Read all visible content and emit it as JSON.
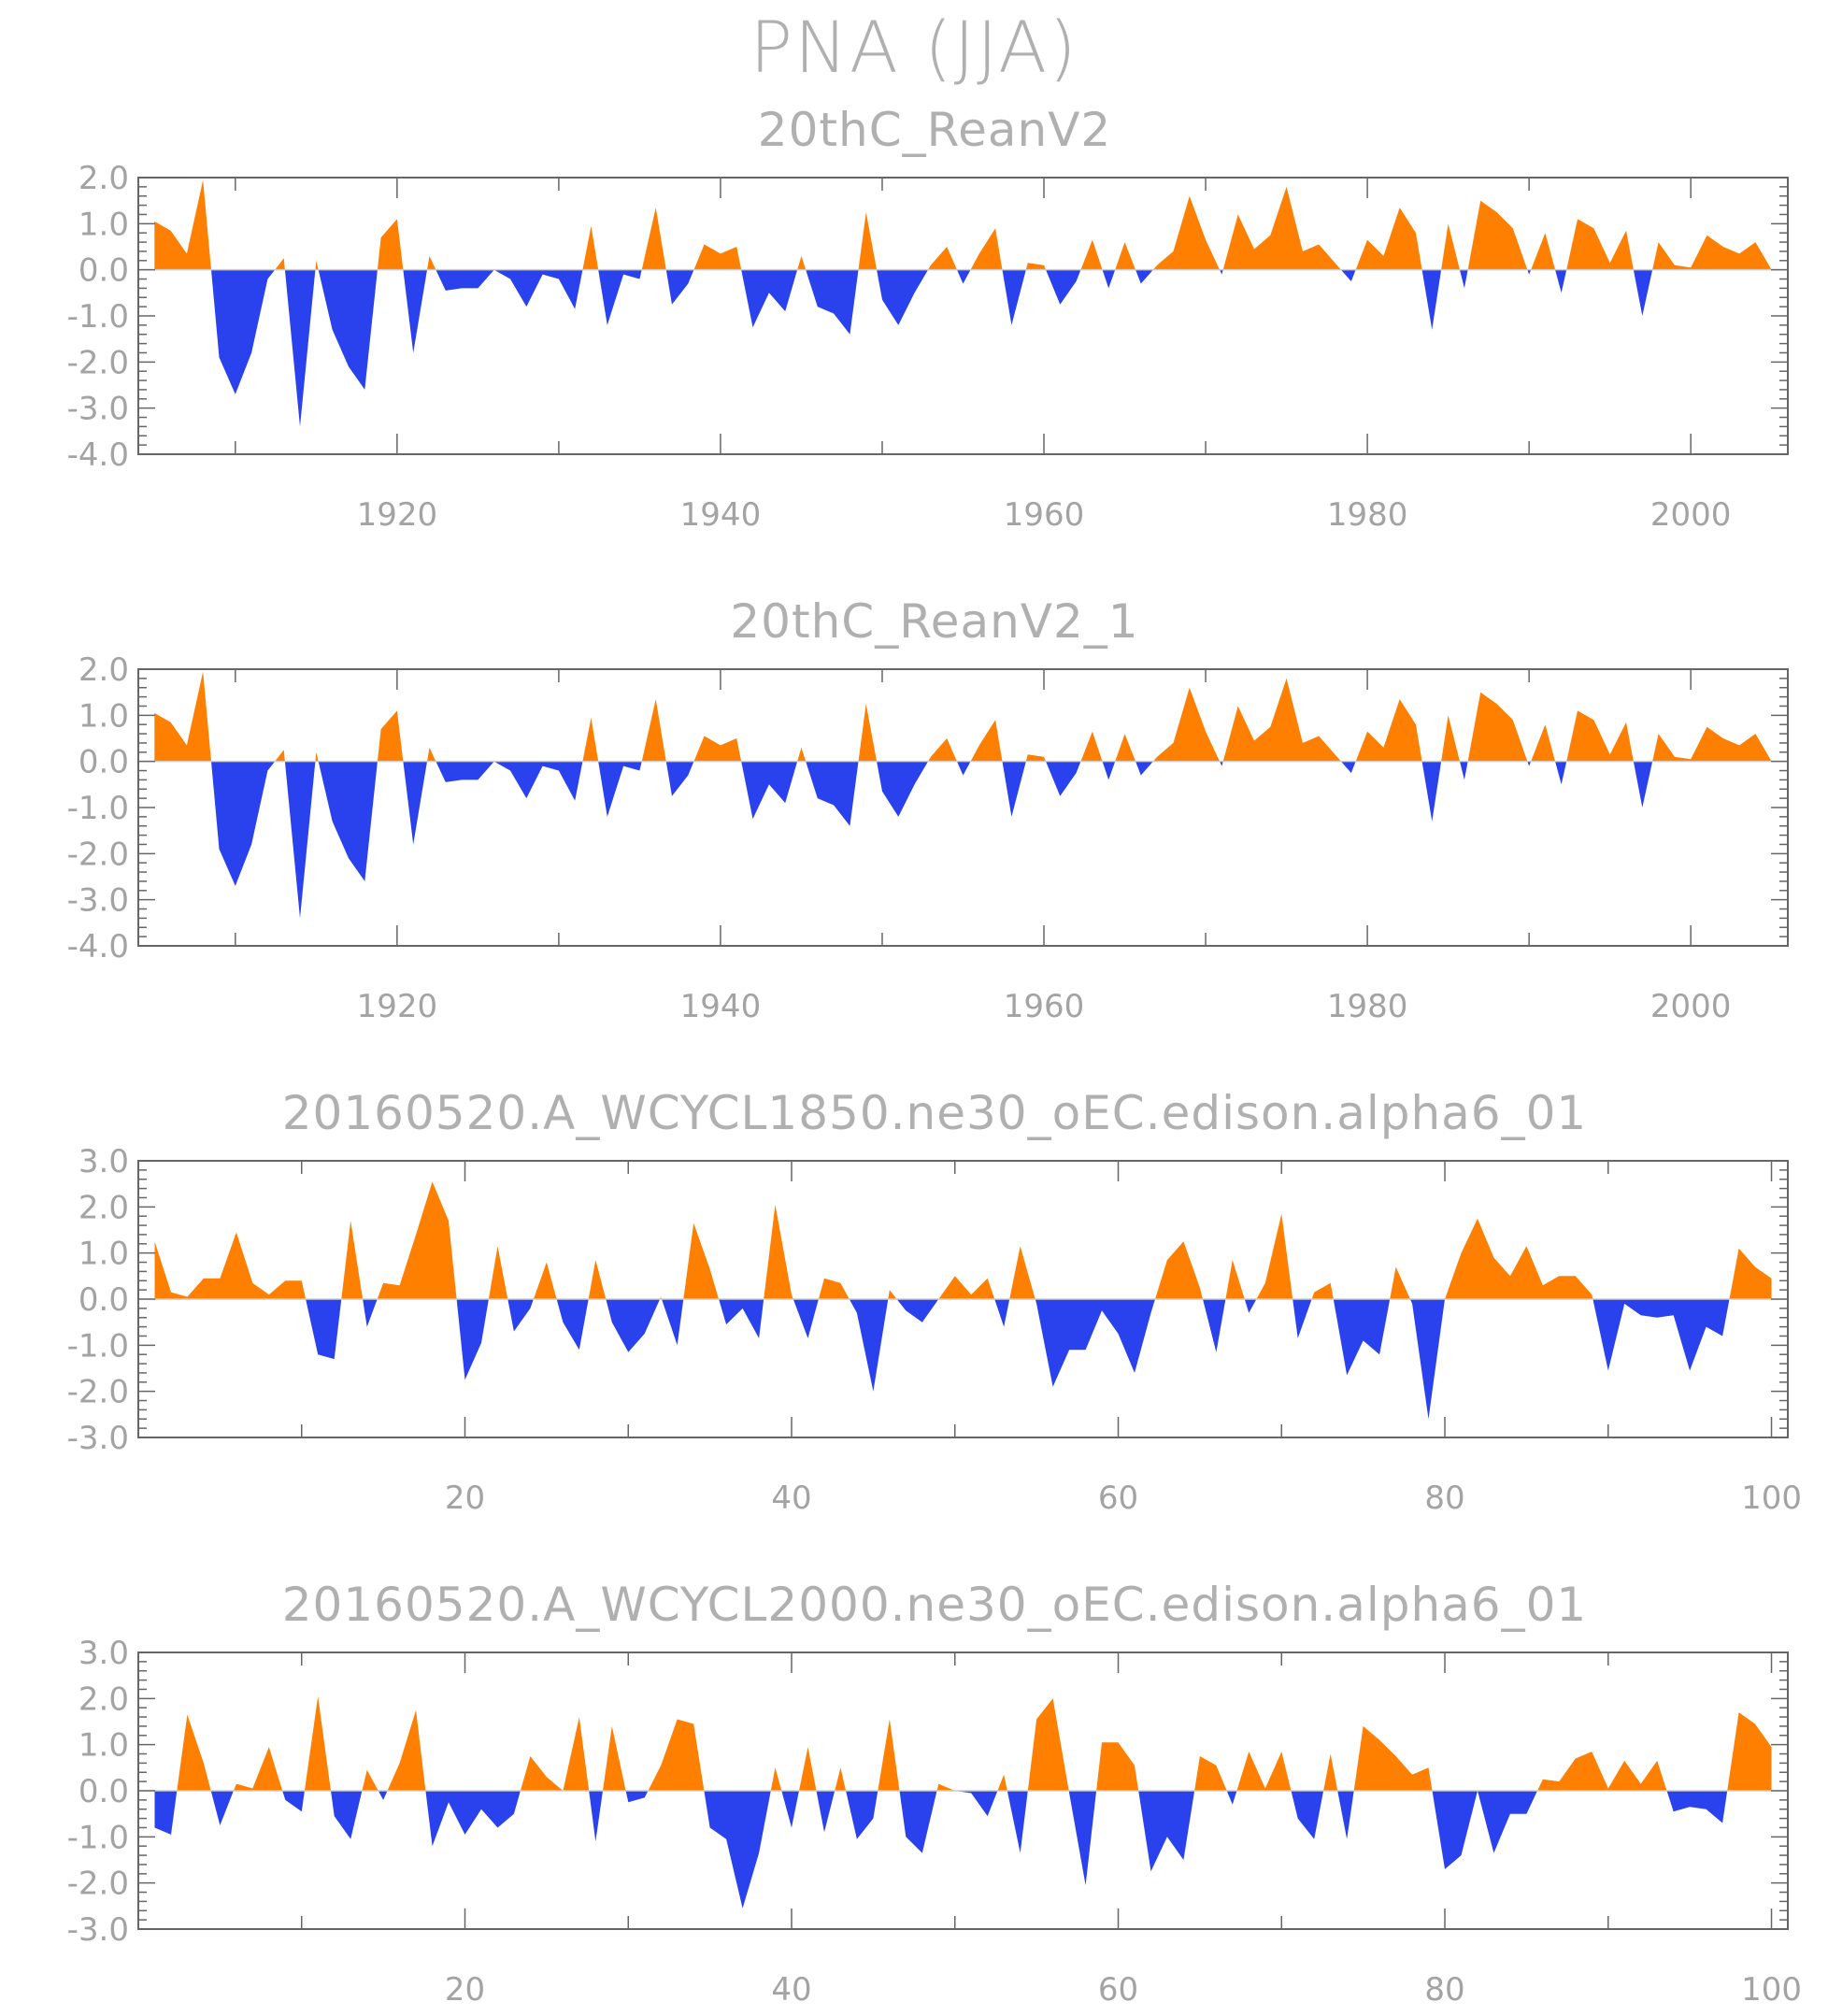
{
  "title": "PNA (JJA)",
  "colors": {
    "positive": "#ff8000",
    "negative": "#2a41ee",
    "axis": "#666666",
    "text": "#a3a3a3"
  },
  "chart_data": [
    {
      "type": "area",
      "title": "20thC_ReanV2",
      "x": [
        1905,
        1906,
        1907,
        1908,
        1909,
        1910,
        1911,
        1912,
        1913,
        1914,
        1915,
        1916,
        1917,
        1918,
        1919,
        1920,
        1921,
        1922,
        1923,
        1924,
        1925,
        1926,
        1927,
        1928,
        1929,
        1930,
        1931,
        1932,
        1933,
        1934,
        1935,
        1936,
        1937,
        1938,
        1939,
        1940,
        1941,
        1942,
        1943,
        1944,
        1945,
        1946,
        1947,
        1948,
        1949,
        1950,
        1951,
        1952,
        1953,
        1954,
        1955,
        1956,
        1957,
        1958,
        1959,
        1960,
        1961,
        1962,
        1963,
        1964,
        1965,
        1966,
        1967,
        1968,
        1969,
        1970,
        1971,
        1972,
        1973,
        1974,
        1975,
        1976,
        1977,
        1978,
        1979,
        1980,
        1981,
        1982,
        1983,
        1984,
        1985,
        1986,
        1987,
        1988,
        1989,
        1990,
        1991,
        1992,
        1993,
        1994,
        1995,
        1996,
        1997,
        1998,
        1999,
        2000,
        2001,
        2002,
        2003,
        2004,
        2005
      ],
      "values": [
        1.05,
        0.85,
        0.35,
        1.95,
        -1.9,
        -2.7,
        -1.8,
        -0.2,
        0.25,
        -3.4,
        0.2,
        -1.3,
        -2.1,
        -2.6,
        0.7,
        1.1,
        -1.8,
        0.3,
        -0.45,
        -0.4,
        -0.4,
        0.0,
        -0.2,
        -0.8,
        -0.1,
        -0.2,
        -0.85,
        0.95,
        -1.2,
        -0.1,
        -0.2,
        1.35,
        -0.75,
        -0.3,
        0.55,
        0.35,
        0.5,
        -1.25,
        -0.5,
        -0.9,
        0.3,
        -0.8,
        -0.95,
        -1.4,
        1.25,
        -0.65,
        -1.2,
        -0.5,
        0.1,
        0.5,
        -0.3,
        0.35,
        0.9,
        -1.2,
        0.15,
        0.1,
        -0.75,
        -0.25,
        0.65,
        -0.4,
        0.6,
        -0.3,
        0.1,
        0.4,
        1.6,
        0.65,
        -0.1,
        1.2,
        0.45,
        0.75,
        1.8,
        0.4,
        0.55,
        0.15,
        -0.25,
        0.65,
        0.3,
        1.35,
        0.8,
        -1.3,
        1.0,
        -0.4,
        1.5,
        1.25,
        0.9,
        -0.1,
        0.8,
        -0.5,
        1.1,
        0.9,
        0.15,
        0.85,
        -1.0,
        0.6,
        0.1,
        0.05,
        0.75,
        0.5,
        0.35,
        0.6,
        0.0
      ],
      "xlim": [
        1904,
        2006
      ],
      "ylim": [
        -4.0,
        2.0
      ],
      "ytick_values": [
        -4.0,
        -3.0,
        -2.0,
        -1.0,
        0.0,
        1.0,
        2.0
      ],
      "ytick_labels": [
        "-4.0",
        "-3.0",
        "-2.0",
        "-1.0",
        "0.0",
        "1.0",
        "2.0"
      ],
      "xtick_values": [
        1920,
        1940,
        1960,
        1980,
        2000
      ],
      "xtick_labels": [
        "1920",
        "1940",
        "1960",
        "1980",
        "2000"
      ],
      "xlabel": "",
      "ylabel": ""
    },
    {
      "type": "area",
      "title": "20thC_ReanV2_1",
      "x": [
        1905,
        1906,
        1907,
        1908,
        1909,
        1910,
        1911,
        1912,
        1913,
        1914,
        1915,
        1916,
        1917,
        1918,
        1919,
        1920,
        1921,
        1922,
        1923,
        1924,
        1925,
        1926,
        1927,
        1928,
        1929,
        1930,
        1931,
        1932,
        1933,
        1934,
        1935,
        1936,
        1937,
        1938,
        1939,
        1940,
        1941,
        1942,
        1943,
        1944,
        1945,
        1946,
        1947,
        1948,
        1949,
        1950,
        1951,
        1952,
        1953,
        1954,
        1955,
        1956,
        1957,
        1958,
        1959,
        1960,
        1961,
        1962,
        1963,
        1964,
        1965,
        1966,
        1967,
        1968,
        1969,
        1970,
        1971,
        1972,
        1973,
        1974,
        1975,
        1976,
        1977,
        1978,
        1979,
        1980,
        1981,
        1982,
        1983,
        1984,
        1985,
        1986,
        1987,
        1988,
        1989,
        1990,
        1991,
        1992,
        1993,
        1994,
        1995,
        1996,
        1997,
        1998,
        1999,
        2000,
        2001,
        2002,
        2003,
        2004,
        2005
      ],
      "values": [
        1.05,
        0.85,
        0.35,
        1.95,
        -1.9,
        -2.7,
        -1.8,
        -0.2,
        0.25,
        -3.4,
        0.2,
        -1.3,
        -2.1,
        -2.6,
        0.7,
        1.1,
        -1.8,
        0.3,
        -0.45,
        -0.4,
        -0.4,
        0.0,
        -0.2,
        -0.8,
        -0.1,
        -0.2,
        -0.85,
        0.95,
        -1.2,
        -0.1,
        -0.2,
        1.35,
        -0.75,
        -0.3,
        0.55,
        0.35,
        0.5,
        -1.25,
        -0.5,
        -0.9,
        0.3,
        -0.8,
        -0.95,
        -1.4,
        1.25,
        -0.65,
        -1.2,
        -0.5,
        0.1,
        0.5,
        -0.3,
        0.35,
        0.9,
        -1.2,
        0.15,
        0.1,
        -0.75,
        -0.25,
        0.65,
        -0.4,
        0.6,
        -0.3,
        0.1,
        0.4,
        1.6,
        0.65,
        -0.1,
        1.2,
        0.45,
        0.75,
        1.8,
        0.4,
        0.55,
        0.15,
        -0.25,
        0.65,
        0.3,
        1.35,
        0.8,
        -1.3,
        1.0,
        -0.4,
        1.5,
        1.25,
        0.9,
        -0.1,
        0.8,
        -0.5,
        1.1,
        0.9,
        0.15,
        0.85,
        -1.0,
        0.6,
        0.1,
        0.05,
        0.75,
        0.5,
        0.35,
        0.6,
        0.0
      ],
      "xlim": [
        1904,
        2006
      ],
      "ylim": [
        -4.0,
        2.0
      ],
      "ytick_values": [
        -4.0,
        -3.0,
        -2.0,
        -1.0,
        0.0,
        1.0,
        2.0
      ],
      "ytick_labels": [
        "-4.0",
        "-3.0",
        "-2.0",
        "-1.0",
        "0.0",
        "1.0",
        "2.0"
      ],
      "xtick_values": [
        1920,
        1940,
        1960,
        1980,
        2000
      ],
      "xtick_labels": [
        "1920",
        "1940",
        "1960",
        "1980",
        "2000"
      ],
      "xlabel": "",
      "ylabel": ""
    },
    {
      "type": "area",
      "title": "20160520.A_WCYCL1850.ne30_oEC.edison.alpha6_01",
      "x": [
        1,
        2,
        3,
        4,
        5,
        6,
        7,
        8,
        9,
        10,
        11,
        12,
        13,
        14,
        15,
        16,
        17,
        18,
        19,
        20,
        21,
        22,
        23,
        24,
        25,
        26,
        27,
        28,
        29,
        30,
        31,
        32,
        33,
        34,
        35,
        36,
        37,
        38,
        39,
        40,
        41,
        42,
        43,
        44,
        45,
        46,
        47,
        48,
        49,
        50,
        51,
        52,
        53,
        54,
        55,
        56,
        57,
        58,
        59,
        60,
        61,
        62,
        63,
        64,
        65,
        66,
        67,
        68,
        69,
        70,
        71,
        72,
        73,
        74,
        75,
        76,
        77,
        78,
        79,
        80,
        81,
        82,
        83,
        84,
        85,
        86,
        87,
        88,
        89,
        90,
        91,
        92,
        93,
        94,
        95,
        96,
        97,
        98,
        99,
        100
      ],
      "values": [
        1.25,
        0.15,
        0.05,
        0.45,
        0.45,
        1.45,
        0.35,
        0.1,
        0.4,
        0.4,
        -1.2,
        -1.3,
        1.7,
        -0.6,
        0.35,
        0.3,
        1.4,
        2.55,
        1.7,
        -1.75,
        -0.95,
        1.15,
        -0.7,
        -0.2,
        0.8,
        -0.5,
        -1.1,
        0.85,
        -0.5,
        -1.15,
        -0.75,
        0.05,
        -1.0,
        1.65,
        0.65,
        -0.55,
        -0.2,
        -0.85,
        2.05,
        0.1,
        -0.85,
        0.45,
        0.35,
        -0.3,
        -2.0,
        0.2,
        -0.25,
        -0.5,
        0.0,
        0.5,
        0.1,
        0.45,
        -0.6,
        1.15,
        -0.1,
        -1.9,
        -1.1,
        -1.1,
        -0.25,
        -0.75,
        -1.6,
        -0.3,
        0.85,
        1.25,
        0.25,
        -1.15,
        0.85,
        -0.3,
        0.35,
        1.85,
        -0.85,
        0.15,
        0.35,
        -1.65,
        -0.9,
        -1.2,
        0.7,
        -0.1,
        -2.6,
        0.0,
        1.0,
        1.75,
        0.9,
        0.5,
        1.15,
        0.3,
        0.5,
        0.5,
        0.1,
        -1.55,
        -0.1,
        -0.35,
        -0.4,
        -0.35,
        -1.55,
        -0.6,
        -0.8,
        1.1,
        0.7,
        0.45
      ],
      "xlim": [
        0,
        101
      ],
      "ylim": [
        -3.0,
        3.0
      ],
      "ytick_values": [
        -3.0,
        -2.0,
        -1.0,
        0.0,
        1.0,
        2.0,
        3.0
      ],
      "ytick_labels": [
        "-3.0",
        "-2.0",
        "-1.0",
        "0.0",
        "1.0",
        "2.0",
        "3.0"
      ],
      "xtick_values": [
        20,
        40,
        60,
        80,
        100
      ],
      "xtick_labels": [
        "20",
        "40",
        "60",
        "80",
        "100"
      ],
      "xlabel": "",
      "ylabel": ""
    },
    {
      "type": "area",
      "title": "20160520.A_WCYCL2000.ne30_oEC.edison.alpha6_01",
      "x": [
        1,
        2,
        3,
        4,
        5,
        6,
        7,
        8,
        9,
        10,
        11,
        12,
        13,
        14,
        15,
        16,
        17,
        18,
        19,
        20,
        21,
        22,
        23,
        24,
        25,
        26,
        27,
        28,
        29,
        30,
        31,
        32,
        33,
        34,
        35,
        36,
        37,
        38,
        39,
        40,
        41,
        42,
        43,
        44,
        45,
        46,
        47,
        48,
        49,
        50,
        51,
        52,
        53,
        54,
        55,
        56,
        57,
        58,
        59,
        60,
        61,
        62,
        63,
        64,
        65,
        66,
        67,
        68,
        69,
        70,
        71,
        72,
        73,
        74,
        75,
        76,
        77,
        78,
        79,
        80,
        81,
        82,
        83,
        84,
        85,
        86,
        87,
        88,
        89,
        90,
        91,
        92,
        93,
        94,
        95,
        96,
        97,
        98,
        99,
        100
      ],
      "values": [
        -0.8,
        -0.95,
        1.65,
        0.6,
        -0.75,
        0.15,
        0.05,
        0.95,
        -0.2,
        -0.45,
        2.05,
        -0.55,
        -1.05,
        0.45,
        -0.2,
        0.6,
        1.75,
        -1.2,
        -0.25,
        -0.95,
        -0.4,
        -0.8,
        -0.5,
        0.75,
        0.3,
        0.0,
        1.6,
        -1.1,
        1.4,
        -0.25,
        -0.15,
        0.55,
        1.55,
        1.45,
        -0.8,
        -1.05,
        -2.55,
        -1.35,
        0.5,
        -0.8,
        0.95,
        -0.9,
        0.5,
        -1.05,
        -0.6,
        1.55,
        -1.0,
        -1.35,
        0.15,
        0.0,
        -0.05,
        -0.55,
        0.35,
        -1.35,
        1.55,
        2.0,
        -0.05,
        -2.05,
        1.05,
        1.05,
        0.55,
        -1.75,
        -1.0,
        -1.5,
        0.75,
        0.55,
        -0.3,
        0.85,
        0.05,
        0.85,
        -0.6,
        -1.05,
        0.8,
        -1.05,
        1.4,
        1.1,
        0.75,
        0.35,
        0.5,
        -1.7,
        -1.4,
        0.0,
        -1.35,
        -0.5,
        -0.5,
        0.25,
        0.2,
        0.7,
        0.85,
        0.05,
        0.65,
        0.15,
        0.65,
        -0.45,
        -0.35,
        -0.4,
        -0.7,
        1.7,
        1.45,
        0.95
      ],
      "xlim": [
        0,
        101
      ],
      "ylim": [
        -3.0,
        3.0
      ],
      "ytick_values": [
        -3.0,
        -2.0,
        -1.0,
        0.0,
        1.0,
        2.0,
        3.0
      ],
      "ytick_labels": [
        "-3.0",
        "-2.0",
        "-1.0",
        "0.0",
        "1.0",
        "2.0",
        "3.0"
      ],
      "xtick_values": [
        20,
        40,
        60,
        80,
        100
      ],
      "xtick_labels": [
        "20",
        "40",
        "60",
        "80",
        "100"
      ],
      "xlabel": "",
      "ylabel": ""
    }
  ]
}
